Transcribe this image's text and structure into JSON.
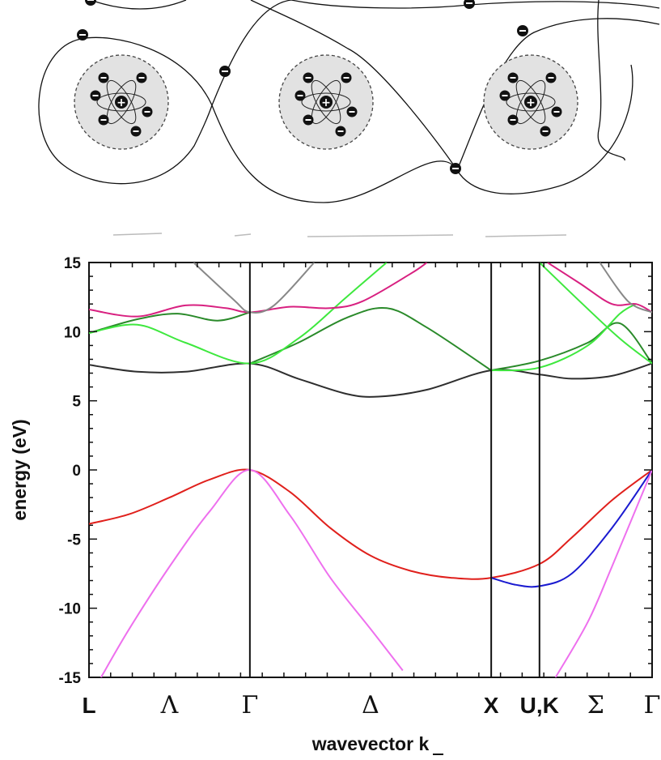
{
  "diagram": {
    "atom_count": 3,
    "electrons_per_atom": 6,
    "nucleus_charge_symbol": "+",
    "electron_charge_symbol": "−"
  },
  "chart_data": {
    "type": "line",
    "ylabel": "energy (eV)",
    "xlabel": "wavevector k",
    "ylim": [
      -15,
      15
    ],
    "yticks": [
      15,
      10,
      5,
      0,
      -5,
      -10,
      -15
    ],
    "xlim": [
      0,
      7
    ],
    "kpoints": [
      {
        "label": "L",
        "x": 0,
        "greek": false
      },
      {
        "label": "Λ",
        "x": 1,
        "greek": true
      },
      {
        "label": "Γ",
        "x": 2,
        "greek": true
      },
      {
        "label": "Δ",
        "x": 3.5,
        "greek": true
      },
      {
        "label": "X",
        "x": 5,
        "greek": false
      },
      {
        "label": "U,K",
        "x": 5.6,
        "greek": false
      },
      {
        "label": "Σ",
        "x": 6.3,
        "greek": true
      },
      {
        "label": "Γ",
        "x": 7,
        "greek": true
      }
    ],
    "vertical_lines": [
      2,
      5,
      5.6
    ],
    "series": [
      {
        "color": "#e0201c",
        "points": [
          [
            0,
            -3.9
          ],
          [
            0.5,
            -3.2
          ],
          [
            1,
            -2.0
          ],
          [
            1.5,
            -0.7
          ],
          [
            2,
            0
          ],
          [
            2.5,
            -1.6
          ],
          [
            3,
            -4.2
          ],
          [
            3.5,
            -6.2
          ],
          [
            4,
            -7.3
          ],
          [
            4.5,
            -7.8
          ],
          [
            5,
            -7.8
          ],
          [
            5.6,
            -6.8
          ],
          [
            6,
            -4.9
          ],
          [
            6.5,
            -2.2
          ],
          [
            7,
            0
          ]
        ]
      },
      {
        "color": "#1a1ad0",
        "points": [
          [
            5,
            -7.8
          ],
          [
            5.3,
            -8.3
          ],
          [
            5.6,
            -8.4
          ],
          [
            6,
            -7.5
          ],
          [
            6.5,
            -4.2
          ],
          [
            7,
            0
          ]
        ]
      },
      {
        "color": "#ee70ee",
        "points": [
          [
            0.15,
            -15
          ],
          [
            0.5,
            -11.5
          ],
          [
            1,
            -7.0
          ],
          [
            1.5,
            -3.0
          ],
          [
            2,
            0
          ],
          [
            2.5,
            -3.3
          ],
          [
            3,
            -7.8
          ],
          [
            3.5,
            -11.5
          ],
          [
            3.9,
            -14.5
          ]
        ]
      },
      {
        "color": "#ee70ee",
        "points": [
          [
            5.8,
            -15
          ],
          [
            6.2,
            -11.0
          ],
          [
            6.5,
            -7.0
          ],
          [
            7,
            0
          ]
        ]
      },
      {
        "color": "#2e2e2e",
        "points": [
          [
            0,
            7.6
          ],
          [
            0.6,
            7.1
          ],
          [
            1.2,
            7.1
          ],
          [
            2,
            7.7
          ],
          [
            2.6,
            6.6
          ],
          [
            3.2,
            5.5
          ],
          [
            3.6,
            5.3
          ],
          [
            4.2,
            5.8
          ],
          [
            5,
            7.2
          ],
          [
            5.6,
            6.9
          ],
          [
            6,
            6.6
          ],
          [
            6.5,
            6.8
          ],
          [
            7,
            7.7
          ]
        ]
      },
      {
        "color": "#2a8a2a",
        "points": [
          [
            0,
            9.9
          ],
          [
            0.6,
            10.9
          ],
          [
            1.1,
            11.3
          ],
          [
            1.6,
            10.8
          ],
          [
            2,
            11.4
          ]
        ]
      },
      {
        "color": "#2a8a2a",
        "points": [
          [
            2,
            7.7
          ],
          [
            2.6,
            9.2
          ],
          [
            3.2,
            11.0
          ],
          [
            3.7,
            11.7
          ],
          [
            4.2,
            10.3
          ],
          [
            5,
            7.2
          ]
        ]
      },
      {
        "color": "#2a8a2a",
        "points": [
          [
            5,
            7.2
          ],
          [
            5.6,
            7.9
          ],
          [
            6.2,
            9.2
          ],
          [
            6.6,
            10.6
          ],
          [
            7,
            7.7
          ]
        ]
      },
      {
        "color": "#3ee83e",
        "points": [
          [
            0,
            9.9
          ],
          [
            0.6,
            10.5
          ],
          [
            1.2,
            9.2
          ],
          [
            2,
            7.7
          ],
          [
            2.6,
            9.5
          ],
          [
            3.2,
            12.5
          ],
          [
            3.7,
            15
          ]
        ]
      },
      {
        "color": "#3ee83e",
        "points": [
          [
            5.6,
            15
          ],
          [
            6.1,
            12.2
          ],
          [
            6.6,
            9.5
          ],
          [
            7,
            7.7
          ]
        ]
      },
      {
        "color": "#3ee83e",
        "points": [
          [
            5,
            7.2
          ],
          [
            5.6,
            7.4
          ],
          [
            6.2,
            9.0
          ],
          [
            6.6,
            11.3
          ],
          [
            6.8,
            12.0
          ]
        ]
      },
      {
        "color": "#d82080",
        "points": [
          [
            0,
            11.6
          ],
          [
            0.6,
            11.1
          ],
          [
            1.2,
            11.9
          ],
          [
            1.7,
            11.7
          ],
          [
            2,
            11.4
          ],
          [
            2.5,
            11.8
          ],
          [
            3,
            11.7
          ],
          [
            3.4,
            12.2
          ],
          [
            4,
            14.2
          ],
          [
            4.2,
            15
          ]
        ]
      },
      {
        "color": "#d82080",
        "points": [
          [
            5.7,
            15
          ],
          [
            6.1,
            13.5
          ],
          [
            6.5,
            12.0
          ],
          [
            6.8,
            12.0
          ],
          [
            7,
            11.4
          ]
        ]
      },
      {
        "color": "#888888",
        "points": [
          [
            1.3,
            15
          ],
          [
            1.8,
            12.3
          ],
          [
            2,
            11.4
          ],
          [
            2.3,
            11.9
          ],
          [
            2.8,
            15
          ]
        ]
      },
      {
        "color": "#888888",
        "points": [
          [
            6.35,
            15
          ],
          [
            6.7,
            12.2
          ],
          [
            7,
            11.4
          ]
        ]
      }
    ]
  }
}
